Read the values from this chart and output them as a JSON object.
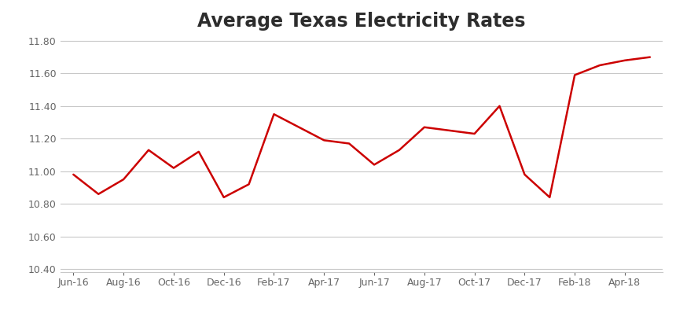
{
  "title": "Average Texas Electricity Rates",
  "x_labels": [
    "Jun-16",
    "Aug-16",
    "Oct-16",
    "Dec-16",
    "Feb-17",
    "Apr-17",
    "Jun-17",
    "Aug-17",
    "Oct-17",
    "Dec-17",
    "Feb-18",
    "Apr-18"
  ],
  "x_tick_positions": [
    0,
    2,
    4,
    6,
    8,
    10,
    12,
    14,
    16,
    18,
    20,
    22
  ],
  "x_values": [
    0,
    1,
    2,
    3,
    4,
    5,
    6,
    7,
    8,
    9,
    10,
    11,
    12,
    13,
    14,
    15,
    16,
    17,
    18,
    19,
    20,
    21,
    22,
    23
  ],
  "y_values": [
    10.98,
    10.86,
    10.95,
    11.13,
    11.02,
    11.12,
    10.84,
    10.92,
    11.35,
    11.27,
    11.19,
    11.17,
    11.04,
    11.13,
    11.27,
    11.25,
    11.23,
    11.4,
    10.98,
    10.84,
    11.59,
    11.65,
    11.68,
    11.7
  ],
  "ylim": [
    10.38,
    11.82
  ],
  "yticks": [
    10.4,
    10.6,
    10.8,
    11.0,
    11.2,
    11.4,
    11.6,
    11.8
  ],
  "xlim": [
    -0.5,
    23.5
  ],
  "line_color": "#cc0000",
  "line_width": 1.8,
  "background_color": "#ffffff",
  "title_fontsize": 17,
  "title_color": "#2d2d2d",
  "tick_color": "#666666",
  "tick_fontsize": 9,
  "grid_color": "#c8c8c8",
  "grid_linewidth": 0.8
}
